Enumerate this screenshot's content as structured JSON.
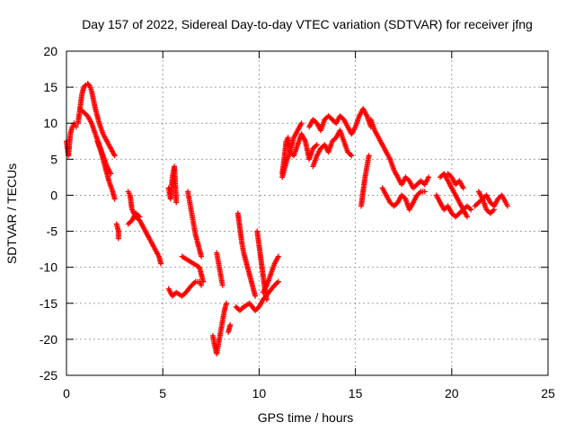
{
  "chart_data": {
    "type": "scatter",
    "title": "Day 157 of 2022, Sidereal Day-to-day VTEC variation (SDTVAR) for receiver jfng",
    "xlabel": "GPS time / hours",
    "ylabel": "SDTVAR / TECUs",
    "xlim": [
      0,
      25
    ],
    "ylim": [
      -25,
      20
    ],
    "xticks": [
      0,
      5,
      10,
      15,
      20,
      25
    ],
    "yticks": [
      -25,
      -20,
      -15,
      -10,
      -5,
      0,
      5,
      10,
      15,
      20
    ],
    "xtick_labels": [
      "0",
      "5",
      "10",
      "15",
      "20",
      "25"
    ],
    "ytick_labels": [
      "-25",
      "-20",
      "-15",
      "-10",
      "-5",
      "0",
      "5",
      "10",
      "15",
      "20"
    ],
    "grid": true,
    "marker": "+",
    "marker_color": "#ff0000",
    "series": [
      {
        "name": "SDTVAR",
        "segments": [
          [
            [
              0.0,
              7.5
            ],
            [
              0.1,
              5.5
            ],
            [
              0.2,
              8.5
            ],
            [
              0.3,
              9.5
            ],
            [
              0.4,
              10.0
            ],
            [
              0.5,
              9.5
            ]
          ],
          [
            [
              0.6,
              10.0
            ],
            [
              0.7,
              12.0
            ],
            [
              0.8,
              14.0
            ],
            [
              0.9,
              15.0
            ],
            [
              1.0,
              15.3
            ],
            [
              1.1,
              15.5
            ],
            [
              1.2,
              15.2
            ],
            [
              1.3,
              14.5
            ],
            [
              1.5,
              12.0
            ],
            [
              1.7,
              10.0
            ],
            [
              1.9,
              8.5
            ],
            [
              2.1,
              7.5
            ],
            [
              2.3,
              6.5
            ],
            [
              2.5,
              5.5
            ]
          ],
          [
            [
              0.7,
              12.0
            ],
            [
              0.9,
              11.5
            ],
            [
              1.1,
              11.0
            ],
            [
              1.3,
              10.0
            ],
            [
              1.5,
              8.5
            ],
            [
              1.7,
              7.0
            ],
            [
              1.9,
              5.5
            ],
            [
              2.1,
              4.0
            ],
            [
              2.3,
              3.0
            ]
          ],
          [
            [
              1.6,
              7.5
            ],
            [
              1.8,
              6.0
            ],
            [
              2.0,
              4.0
            ],
            [
              2.2,
              2.0
            ],
            [
              2.4,
              0.5
            ],
            [
              2.5,
              -0.5
            ]
          ],
          [
            [
              2.6,
              -4.0
            ],
            [
              2.7,
              -5.0
            ],
            [
              2.7,
              -6.0
            ]
          ],
          [
            [
              3.2,
              0.5
            ],
            [
              3.3,
              0.0
            ],
            [
              3.4,
              -2.0
            ],
            [
              3.6,
              -3.0
            ],
            [
              3.8,
              -3.5
            ],
            [
              4.0,
              -4.5
            ],
            [
              4.2,
              -5.5
            ],
            [
              4.4,
              -6.5
            ],
            [
              4.6,
              -7.5
            ],
            [
              4.8,
              -8.5
            ],
            [
              4.9,
              -9.5
            ]
          ],
          [
            [
              3.2,
              -4.0
            ],
            [
              3.4,
              -3.5
            ],
            [
              3.6,
              -2.5
            ],
            [
              3.8,
              -3.0
            ]
          ],
          [
            [
              5.3,
              -13.0
            ],
            [
              5.5,
              -14.0
            ],
            [
              5.7,
              -13.5
            ],
            [
              6.0,
              -14.0
            ],
            [
              6.2,
              -13.5
            ],
            [
              6.5,
              -12.5
            ],
            [
              6.7,
              -12.0
            ],
            [
              6.9,
              -12.0
            ],
            [
              7.0,
              -12.5
            ]
          ],
          [
            [
              5.3,
              1.0
            ],
            [
              5.4,
              -0.5
            ],
            [
              5.5,
              2.5
            ],
            [
              5.6,
              4.0
            ],
            [
              5.7,
              -1.0
            ]
          ],
          [
            [
              6.0,
              -8.5
            ],
            [
              6.3,
              -9.0
            ],
            [
              6.6,
              -9.5
            ],
            [
              6.9,
              -10.0
            ],
            [
              7.0,
              -11.0
            ],
            [
              7.1,
              -12.0
            ]
          ],
          [
            [
              6.3,
              0.5
            ],
            [
              6.4,
              -1.0
            ],
            [
              6.5,
              -2.5
            ],
            [
              6.6,
              -4.0
            ],
            [
              6.7,
              -5.5
            ],
            [
              6.8,
              -6.5
            ],
            [
              6.9,
              -7.5
            ],
            [
              7.0,
              -8.5
            ]
          ],
          [
            [
              7.6,
              -19.5
            ],
            [
              7.7,
              -21.0
            ],
            [
              7.8,
              -22.0
            ],
            [
              7.9,
              -20.5
            ],
            [
              8.0,
              -19.0
            ],
            [
              8.1,
              -17.5
            ],
            [
              8.2,
              -16.0
            ],
            [
              8.3,
              -15.0
            ]
          ],
          [
            [
              7.8,
              -8.0
            ],
            [
              7.9,
              -9.5
            ],
            [
              8.0,
              -11.0
            ],
            [
              8.1,
              -12.5
            ]
          ],
          [
            [
              8.4,
              -19.0
            ],
            [
              8.5,
              -18.0
            ]
          ],
          [
            [
              8.8,
              -15.5
            ],
            [
              9.0,
              -16.0
            ],
            [
              9.2,
              -15.5
            ],
            [
              9.5,
              -15.0
            ],
            [
              9.8,
              -16.0
            ],
            [
              10.0,
              -15.5
            ],
            [
              10.2,
              -14.5
            ],
            [
              10.5,
              -13.5
            ],
            [
              10.8,
              -12.5
            ],
            [
              11.0,
              -12.0
            ]
          ],
          [
            [
              8.9,
              -2.5
            ],
            [
              9.0,
              -4.5
            ],
            [
              9.1,
              -6.5
            ],
            [
              9.2,
              -8.0
            ],
            [
              9.3,
              -9.0
            ],
            [
              9.4,
              -10.0
            ],
            [
              9.5,
              -11.0
            ],
            [
              9.6,
              -12.0
            ],
            [
              9.7,
              -13.0
            ],
            [
              9.8,
              -14.0
            ]
          ],
          [
            [
              9.9,
              -5.0
            ],
            [
              10.0,
              -7.0
            ],
            [
              10.1,
              -9.0
            ],
            [
              10.2,
              -11.0
            ],
            [
              10.3,
              -13.0
            ],
            [
              10.4,
              -14.5
            ]
          ],
          [
            [
              10.2,
              -13.5
            ],
            [
              10.4,
              -12.5
            ],
            [
              10.6,
              -11.0
            ],
            [
              10.8,
              -9.5
            ],
            [
              11.0,
              -8.5
            ]
          ],
          [
            [
              11.2,
              3.0
            ],
            [
              11.3,
              5.0
            ],
            [
              11.4,
              7.5
            ],
            [
              11.5,
              8.0
            ],
            [
              11.6,
              6.0
            ],
            [
              11.8,
              5.5
            ],
            [
              12.0,
              7.0
            ],
            [
              12.2,
              8.5
            ],
            [
              12.4,
              7.5
            ],
            [
              12.6,
              5.0
            ],
            [
              12.8,
              6.5
            ],
            [
              13.0,
              7.0
            ]
          ],
          [
            [
              11.2,
              2.5
            ],
            [
              11.4,
              4.5
            ],
            [
              11.6,
              6.0
            ],
            [
              11.8,
              8.0
            ],
            [
              12.0,
              9.0
            ],
            [
              12.2,
              10.0
            ]
          ],
          [
            [
              12.8,
              4.0
            ],
            [
              13.0,
              5.5
            ],
            [
              13.2,
              6.5
            ],
            [
              13.4,
              7.0
            ],
            [
              13.6,
              6.0
            ],
            [
              13.8,
              7.5
            ],
            [
              14.0,
              8.0
            ],
            [
              14.2,
              9.0
            ],
            [
              14.4,
              7.5
            ],
            [
              14.6,
              6.0
            ],
            [
              14.8,
              5.5
            ]
          ],
          [
            [
              12.6,
              9.5
            ],
            [
              12.8,
              10.5
            ],
            [
              13.0,
              10.0
            ],
            [
              13.2,
              9.0
            ],
            [
              13.4,
              10.5
            ],
            [
              13.6,
              11.0
            ],
            [
              13.8,
              10.5
            ],
            [
              14.0,
              10.0
            ],
            [
              14.2,
              11.0
            ],
            [
              14.4,
              10.5
            ],
            [
              14.6,
              9.5
            ],
            [
              14.8,
              8.5
            ],
            [
              15.0,
              9.5
            ],
            [
              15.2,
              11.0
            ],
            [
              15.4,
              12.0
            ],
            [
              15.6,
              11.0
            ],
            [
              15.8,
              9.5
            ]
          ],
          [
            [
              15.3,
              -1.5
            ],
            [
              15.4,
              0.5
            ],
            [
              15.5,
              2.5
            ],
            [
              15.6,
              4.0
            ],
            [
              15.7,
              5.5
            ]
          ],
          [
            [
              15.8,
              10.5
            ],
            [
              16.0,
              9.0
            ],
            [
              16.2,
              8.0
            ],
            [
              16.4,
              7.0
            ],
            [
              16.6,
              6.0
            ],
            [
              16.8,
              5.0
            ],
            [
              17.0,
              3.5
            ],
            [
              17.2,
              2.5
            ],
            [
              17.4,
              1.5
            ],
            [
              17.6,
              2.5
            ],
            [
              17.8,
              2.0
            ],
            [
              18.0,
              1.0
            ],
            [
              18.2,
              1.5
            ],
            [
              18.4,
              2.0
            ],
            [
              18.6,
              1.5
            ],
            [
              18.8,
              2.5
            ]
          ],
          [
            [
              16.4,
              1.0
            ],
            [
              16.6,
              0.0
            ],
            [
              16.8,
              -1.0
            ],
            [
              17.0,
              -1.5
            ],
            [
              17.2,
              -1.0
            ],
            [
              17.4,
              0.0
            ],
            [
              17.6,
              -0.5
            ],
            [
              17.8,
              -2.0
            ],
            [
              18.0,
              -1.0
            ],
            [
              18.2,
              0.0
            ],
            [
              18.4,
              0.5
            ],
            [
              18.6,
              0.5
            ]
          ],
          [
            [
              19.2,
              0.0
            ],
            [
              19.4,
              -1.0
            ],
            [
              19.6,
              -2.0
            ],
            [
              19.8,
              -1.5
            ],
            [
              20.0,
              -2.5
            ],
            [
              20.2,
              -3.0
            ],
            [
              20.4,
              -2.5
            ],
            [
              20.6,
              -2.0
            ],
            [
              20.8,
              -1.5
            ],
            [
              21.0,
              -2.0
            ]
          ],
          [
            [
              19.4,
              2.5
            ],
            [
              19.6,
              3.0
            ],
            [
              19.8,
              2.0
            ],
            [
              20.0,
              1.0
            ],
            [
              20.2,
              0.0
            ],
            [
              20.4,
              -1.0
            ],
            [
              20.6,
              -2.0
            ],
            [
              20.8,
              -3.0
            ]
          ],
          [
            [
              19.8,
              3.0
            ],
            [
              20.0,
              2.5
            ],
            [
              20.2,
              1.5
            ],
            [
              20.4,
              2.0
            ],
            [
              20.6,
              1.0
            ]
          ],
          [
            [
              21.2,
              -1.5
            ],
            [
              21.4,
              -1.0
            ],
            [
              21.6,
              -0.5
            ],
            [
              21.8,
              0.0
            ],
            [
              22.0,
              -1.0
            ],
            [
              22.2,
              -1.5
            ],
            [
              22.4,
              -0.5
            ],
            [
              22.6,
              0.0
            ],
            [
              22.8,
              -1.0
            ],
            [
              22.9,
              -1.5
            ]
          ],
          [
            [
              21.4,
              0.5
            ],
            [
              21.6,
              -0.5
            ],
            [
              21.8,
              -2.0
            ],
            [
              22.0,
              -2.5
            ],
            [
              22.2,
              -2.0
            ]
          ]
        ]
      }
    ]
  }
}
